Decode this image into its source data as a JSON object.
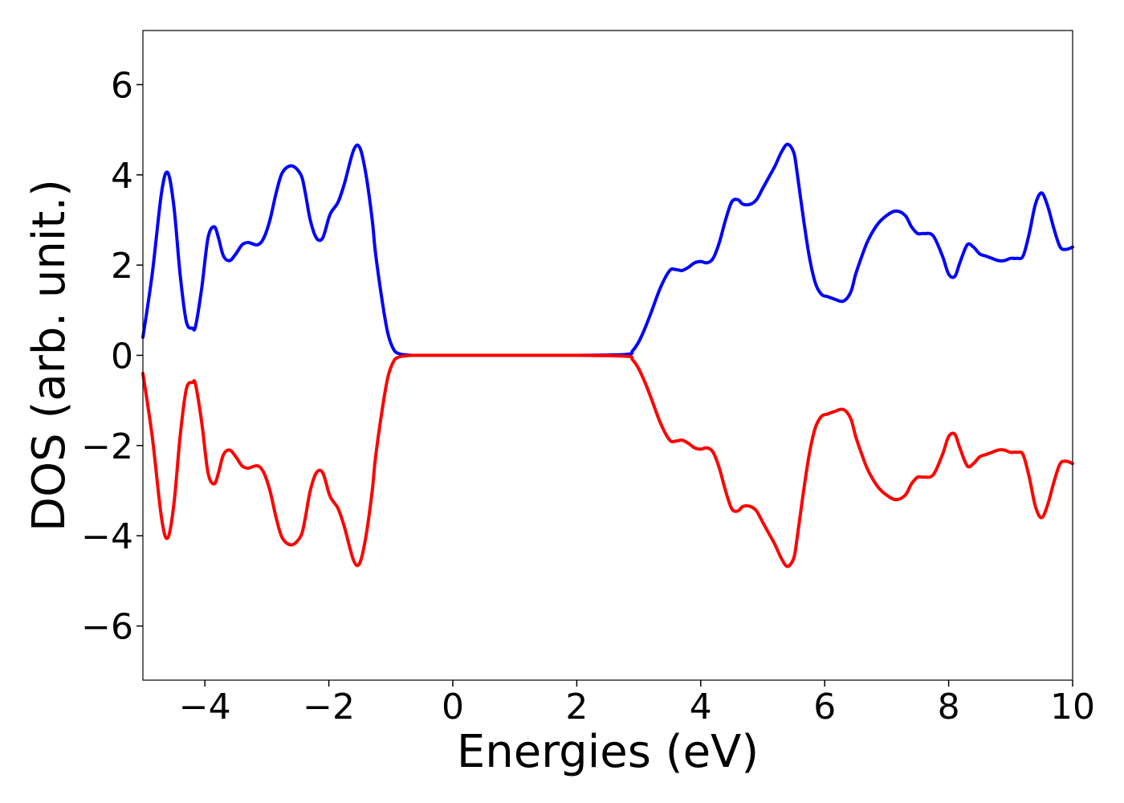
{
  "chart_data": {
    "type": "line",
    "title": "",
    "xlabel": "Energies (eV)",
    "ylabel": "DOS (arb. unit.)",
    "xlim": [
      -5,
      10
    ],
    "ylim": [
      -7.2,
      7.2
    ],
    "xticks": [
      -4,
      -2,
      0,
      2,
      4,
      6,
      8,
      10
    ],
    "yticks": [
      -6,
      -4,
      -2,
      0,
      2,
      4,
      6
    ],
    "xtick_labels": [
      "−4",
      "−2",
      "0",
      "2",
      "4",
      "6",
      "8",
      "10"
    ],
    "ytick_labels": [
      "−6",
      "−4",
      "−2",
      "0",
      "2",
      "4",
      "6"
    ],
    "grid": false,
    "legend": "none",
    "series": [
      {
        "color": "#0000ff",
        "x": [
          -5.0,
          -4.85,
          -4.7,
          -4.6,
          -4.5,
          -4.4,
          -4.3,
          -4.2,
          -4.15,
          -4.05,
          -3.95,
          -3.85,
          -3.78,
          -3.7,
          -3.6,
          -3.5,
          -3.4,
          -3.3,
          -3.15,
          -3.05,
          -2.95,
          -2.85,
          -2.75,
          -2.6,
          -2.45,
          -2.38,
          -2.3,
          -2.2,
          -2.1,
          -2.0,
          -1.95,
          -1.85,
          -1.75,
          -1.6,
          -1.5,
          -1.4,
          -1.3,
          -1.25,
          -1.15,
          -1.05,
          -0.95,
          -0.85,
          -0.75,
          -0.65,
          -0.55,
          -0.45,
          -0.3,
          0.0,
          1.0,
          2.0,
          2.8,
          2.9,
          3.0,
          3.1,
          3.2,
          3.35,
          3.5,
          3.6,
          3.7,
          3.8,
          3.9,
          4.0,
          4.1,
          4.2,
          4.3,
          4.4,
          4.5,
          4.6,
          4.68,
          4.8,
          4.9,
          5.0,
          5.1,
          5.2,
          5.3,
          5.4,
          5.5,
          5.55,
          5.65,
          5.75,
          5.85,
          5.95,
          6.05,
          6.15,
          6.3,
          6.42,
          6.5,
          6.6,
          6.7,
          6.85,
          7.0,
          7.15,
          7.3,
          7.4,
          7.5,
          7.6,
          7.75,
          7.9,
          8.0,
          8.1,
          8.18,
          8.3,
          8.4,
          8.5,
          8.6,
          8.7,
          8.8,
          8.9,
          9.0,
          9.1,
          9.2,
          9.3,
          9.4,
          9.5,
          9.6,
          9.7,
          9.8,
          9.9,
          10.0
        ],
        "values": [
          0.4,
          1.8,
          3.6,
          4.05,
          3.3,
          1.8,
          0.75,
          0.6,
          0.65,
          1.5,
          2.6,
          2.85,
          2.6,
          2.2,
          2.1,
          2.25,
          2.45,
          2.5,
          2.45,
          2.6,
          3.0,
          3.6,
          4.05,
          4.2,
          4.0,
          3.6,
          3.0,
          2.6,
          2.6,
          3.05,
          3.2,
          3.4,
          3.8,
          4.55,
          4.6,
          4.0,
          3.0,
          2.3,
          1.3,
          0.5,
          0.12,
          0.03,
          0.01,
          0.0,
          0.0,
          0.0,
          0.0,
          0.0,
          0.0,
          0.0,
          0.02,
          0.1,
          0.3,
          0.6,
          0.95,
          1.5,
          1.88,
          1.9,
          1.88,
          1.95,
          2.05,
          2.08,
          2.05,
          2.15,
          2.5,
          3.0,
          3.4,
          3.45,
          3.35,
          3.35,
          3.45,
          3.7,
          3.95,
          4.2,
          4.5,
          4.68,
          4.5,
          4.1,
          3.1,
          2.2,
          1.6,
          1.35,
          1.3,
          1.25,
          1.2,
          1.4,
          1.8,
          2.2,
          2.55,
          2.9,
          3.1,
          3.2,
          3.1,
          2.85,
          2.7,
          2.7,
          2.65,
          2.2,
          1.8,
          1.75,
          2.05,
          2.45,
          2.4,
          2.25,
          2.2,
          2.15,
          2.1,
          2.1,
          2.15,
          2.15,
          2.2,
          2.7,
          3.35,
          3.6,
          3.3,
          2.8,
          2.4,
          2.35,
          2.4
        ]
      },
      {
        "color": "#ff0000",
        "x": [
          -5.0,
          -4.85,
          -4.7,
          -4.6,
          -4.5,
          -4.4,
          -4.3,
          -4.2,
          -4.15,
          -4.05,
          -3.95,
          -3.85,
          -3.78,
          -3.7,
          -3.6,
          -3.5,
          -3.4,
          -3.3,
          -3.15,
          -3.05,
          -2.95,
          -2.85,
          -2.75,
          -2.6,
          -2.45,
          -2.38,
          -2.3,
          -2.2,
          -2.1,
          -2.0,
          -1.95,
          -1.85,
          -1.75,
          -1.6,
          -1.5,
          -1.4,
          -1.3,
          -1.25,
          -1.15,
          -1.05,
          -0.95,
          -0.85,
          -0.75,
          -0.65,
          -0.55,
          -0.45,
          -0.3,
          0.0,
          1.0,
          2.0,
          2.8,
          2.9,
          3.0,
          3.1,
          3.2,
          3.35,
          3.5,
          3.6,
          3.7,
          3.8,
          3.9,
          4.0,
          4.1,
          4.2,
          4.3,
          4.4,
          4.5,
          4.6,
          4.68,
          4.8,
          4.9,
          5.0,
          5.1,
          5.2,
          5.3,
          5.4,
          5.5,
          5.55,
          5.65,
          5.75,
          5.85,
          5.95,
          6.05,
          6.15,
          6.3,
          6.42,
          6.5,
          6.6,
          6.7,
          6.85,
          7.0,
          7.15,
          7.3,
          7.4,
          7.5,
          7.6,
          7.75,
          7.9,
          8.0,
          8.1,
          8.18,
          8.3,
          8.4,
          8.5,
          8.6,
          8.7,
          8.8,
          8.9,
          9.0,
          9.1,
          9.2,
          9.3,
          9.4,
          9.5,
          9.6,
          9.7,
          9.8,
          9.9,
          10.0
        ],
        "values": [
          -0.4,
          -1.8,
          -3.6,
          -4.05,
          -3.3,
          -1.8,
          -0.75,
          -0.6,
          -0.65,
          -1.5,
          -2.6,
          -2.85,
          -2.6,
          -2.2,
          -2.1,
          -2.25,
          -2.45,
          -2.5,
          -2.45,
          -2.6,
          -3.0,
          -3.6,
          -4.05,
          -4.2,
          -4.0,
          -3.6,
          -3.0,
          -2.6,
          -2.6,
          -3.05,
          -3.2,
          -3.4,
          -3.8,
          -4.55,
          -4.6,
          -4.0,
          -3.0,
          -2.3,
          -1.3,
          -0.5,
          -0.12,
          -0.03,
          -0.01,
          0.0,
          0.0,
          0.0,
          0.0,
          0.0,
          0.0,
          0.0,
          -0.02,
          -0.1,
          -0.3,
          -0.6,
          -0.95,
          -1.5,
          -1.88,
          -1.9,
          -1.88,
          -1.95,
          -2.05,
          -2.08,
          -2.05,
          -2.15,
          -2.5,
          -3.0,
          -3.4,
          -3.45,
          -3.35,
          -3.35,
          -3.45,
          -3.7,
          -3.95,
          -4.2,
          -4.5,
          -4.68,
          -4.5,
          -4.1,
          -3.1,
          -2.2,
          -1.6,
          -1.35,
          -1.3,
          -1.25,
          -1.2,
          -1.4,
          -1.8,
          -2.2,
          -2.55,
          -2.9,
          -3.1,
          -3.2,
          -3.1,
          -2.85,
          -2.7,
          -2.7,
          -2.65,
          -2.2,
          -1.8,
          -1.75,
          -2.05,
          -2.45,
          -2.4,
          -2.25,
          -2.2,
          -2.15,
          -2.1,
          -2.1,
          -2.15,
          -2.15,
          -2.2,
          -2.7,
          -3.35,
          -3.6,
          -3.3,
          -2.8,
          -2.4,
          -2.35,
          -2.4
        ]
      }
    ]
  }
}
